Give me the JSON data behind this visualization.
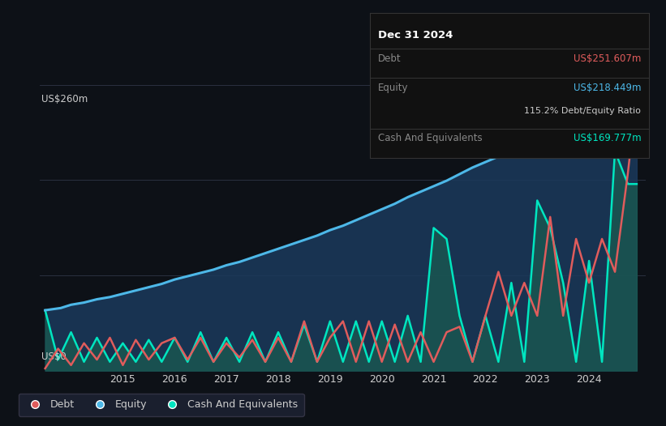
{
  "bg_color": "#0d1117",
  "plot_bg_color": "#0d1117",
  "grid_color": "#2a3040",
  "text_color": "#cccccc",
  "debt_color": "#e05c5c",
  "equity_color": "#4db8e8",
  "cash_color": "#00e5c0",
  "fill_color_equity": "#1a3a5c",
  "fill_color_cash": "#1a5a50",
  "ylabel_text": "US$260m",
  "ylabel_bottom": "US$0",
  "ylim": [
    0,
    260
  ],
  "tooltip_bg": "#111111",
  "tooltip_title": "Dec 31 2024",
  "tooltip_debt_label": "Debt",
  "tooltip_debt_value": "US$251.607m",
  "tooltip_equity_label": "Equity",
  "tooltip_equity_value": "US$218.449m",
  "tooltip_ratio": "115.2% Debt/Equity Ratio",
  "tooltip_cash_label": "Cash And Equivalents",
  "tooltip_cash_value": "US$169.777m",
  "legend_items": [
    "Debt",
    "Equity",
    "Cash And Equivalents"
  ],
  "x_ticks": [
    2015,
    2016,
    2017,
    2018,
    2019,
    2020,
    2021,
    2022,
    2023,
    2024
  ],
  "equity_x": [
    2013.5,
    2013.8,
    2014.0,
    2014.25,
    2014.5,
    2014.75,
    2015.0,
    2015.25,
    2015.5,
    2015.75,
    2016.0,
    2016.25,
    2016.5,
    2016.75,
    2017.0,
    2017.25,
    2017.5,
    2017.75,
    2018.0,
    2018.25,
    2018.5,
    2018.75,
    2019.0,
    2019.25,
    2019.5,
    2019.75,
    2020.0,
    2020.25,
    2020.5,
    2020.75,
    2021.0,
    2021.25,
    2021.5,
    2021.75,
    2022.0,
    2022.25,
    2022.5,
    2022.75,
    2023.0,
    2023.25,
    2023.5,
    2023.75,
    2024.0,
    2024.25,
    2024.5,
    2024.75,
    2024.92
  ],
  "equity_y": [
    55,
    57,
    60,
    62,
    65,
    67,
    70,
    73,
    76,
    79,
    83,
    86,
    89,
    92,
    96,
    99,
    103,
    107,
    111,
    115,
    119,
    123,
    128,
    132,
    137,
    142,
    147,
    152,
    158,
    163,
    168,
    173,
    179,
    185,
    190,
    195,
    198,
    200,
    200,
    202,
    205,
    210,
    215,
    218,
    220,
    218,
    218
  ],
  "debt_x": [
    2013.5,
    2013.75,
    2014.0,
    2014.25,
    2014.5,
    2014.75,
    2015.0,
    2015.25,
    2015.5,
    2015.75,
    2016.0,
    2016.25,
    2016.5,
    2016.75,
    2017.0,
    2017.25,
    2017.5,
    2017.75,
    2018.0,
    2018.25,
    2018.5,
    2018.75,
    2019.0,
    2019.25,
    2019.5,
    2019.75,
    2020.0,
    2020.25,
    2020.5,
    2020.75,
    2021.0,
    2021.25,
    2021.5,
    2021.75,
    2022.0,
    2022.25,
    2022.5,
    2022.75,
    2023.0,
    2023.25,
    2023.5,
    2023.75,
    2024.0,
    2024.25,
    2024.5,
    2024.75,
    2024.92
  ],
  "debt_y": [
    2,
    20,
    5,
    25,
    10,
    30,
    5,
    28,
    10,
    25,
    30,
    10,
    30,
    8,
    25,
    12,
    28,
    8,
    30,
    8,
    45,
    8,
    30,
    45,
    8,
    45,
    8,
    42,
    8,
    35,
    8,
    35,
    40,
    8,
    50,
    90,
    50,
    80,
    50,
    140,
    50,
    120,
    80,
    120,
    90,
    180,
    252
  ],
  "cash_x": [
    2013.5,
    2013.75,
    2014.0,
    2014.25,
    2014.5,
    2014.75,
    2015.0,
    2015.25,
    2015.5,
    2015.75,
    2016.0,
    2016.25,
    2016.5,
    2016.75,
    2017.0,
    2017.25,
    2017.5,
    2017.75,
    2018.0,
    2018.25,
    2018.5,
    2018.75,
    2019.0,
    2019.25,
    2019.5,
    2019.75,
    2020.0,
    2020.25,
    2020.5,
    2020.75,
    2021.0,
    2021.25,
    2021.5,
    2021.75,
    2022.0,
    2022.25,
    2022.5,
    2022.75,
    2023.0,
    2023.25,
    2023.5,
    2023.75,
    2024.0,
    2024.25,
    2024.5,
    2024.75,
    2024.92
  ],
  "cash_y": [
    55,
    10,
    35,
    8,
    30,
    8,
    25,
    8,
    28,
    8,
    30,
    8,
    35,
    8,
    30,
    8,
    35,
    8,
    35,
    8,
    42,
    8,
    45,
    8,
    45,
    8,
    45,
    8,
    50,
    8,
    130,
    120,
    50,
    8,
    50,
    8,
    80,
    8,
    155,
    130,
    80,
    8,
    100,
    8,
    200,
    170,
    170
  ]
}
